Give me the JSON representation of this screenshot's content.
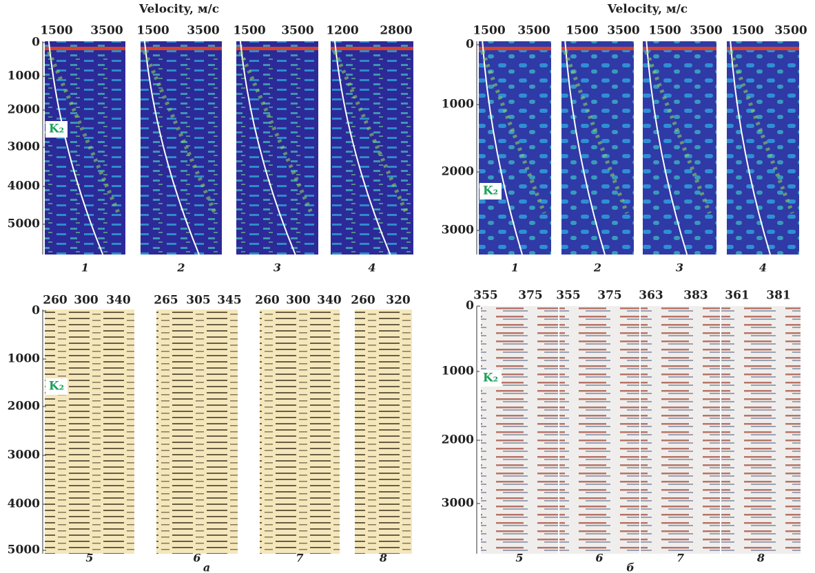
{
  "left": {
    "velocity_title": "Velocity, м/с",
    "velocity_panels": [
      {
        "number": "1",
        "ticks": [
          "1500",
          "3500"
        ]
      },
      {
        "number": "2",
        "ticks": [
          "1500",
          "3500"
        ]
      },
      {
        "number": "3",
        "ticks": [
          "1500",
          "3500"
        ]
      },
      {
        "number": "4",
        "ticks": [
          "1200",
          "2800"
        ]
      }
    ],
    "velocity_depth_ticks": [
      "0",
      "1000",
      "2000",
      "3000",
      "4000",
      "5000"
    ],
    "seismic_panels": [
      {
        "number": "5",
        "ticks": [
          "260",
          "300",
          "340"
        ]
      },
      {
        "number": "6",
        "ticks": [
          "265",
          "305",
          "345"
        ]
      },
      {
        "number": "7",
        "ticks": [
          "260",
          "300",
          "340"
        ]
      },
      {
        "number": "8",
        "ticks": [
          "260",
          "320"
        ]
      }
    ],
    "seismic_depth_ticks": [
      "0",
      "1000",
      "2000",
      "3000",
      "4000",
      "5000"
    ],
    "horizon_label": "K₂",
    "part_letter": "а"
  },
  "right": {
    "velocity_title": "Velocity, м/с",
    "velocity_panels": [
      {
        "number": "1",
        "ticks": [
          "1500",
          "3500"
        ]
      },
      {
        "number": "2",
        "ticks": [
          "1500",
          "3500"
        ]
      },
      {
        "number": "3",
        "ticks": [
          "1500",
          "3500"
        ]
      },
      {
        "number": "4",
        "ticks": [
          "1500",
          "3500"
        ]
      }
    ],
    "velocity_depth_ticks": [
      "0",
      "1000",
      "2000",
      "3000"
    ],
    "seismic_panels": [
      {
        "number": "5",
        "ticks": [
          "355",
          "375"
        ]
      },
      {
        "number": "6",
        "ticks": [
          "355",
          "375"
        ]
      },
      {
        "number": "7",
        "ticks": [
          "363",
          "383"
        ]
      },
      {
        "number": "8",
        "ticks": [
          "361",
          "381"
        ]
      }
    ],
    "seismic_depth_ticks": [
      "0",
      "1000",
      "2000",
      "3000"
    ],
    "horizon_label": "K₂",
    "part_letter": "б"
  }
}
